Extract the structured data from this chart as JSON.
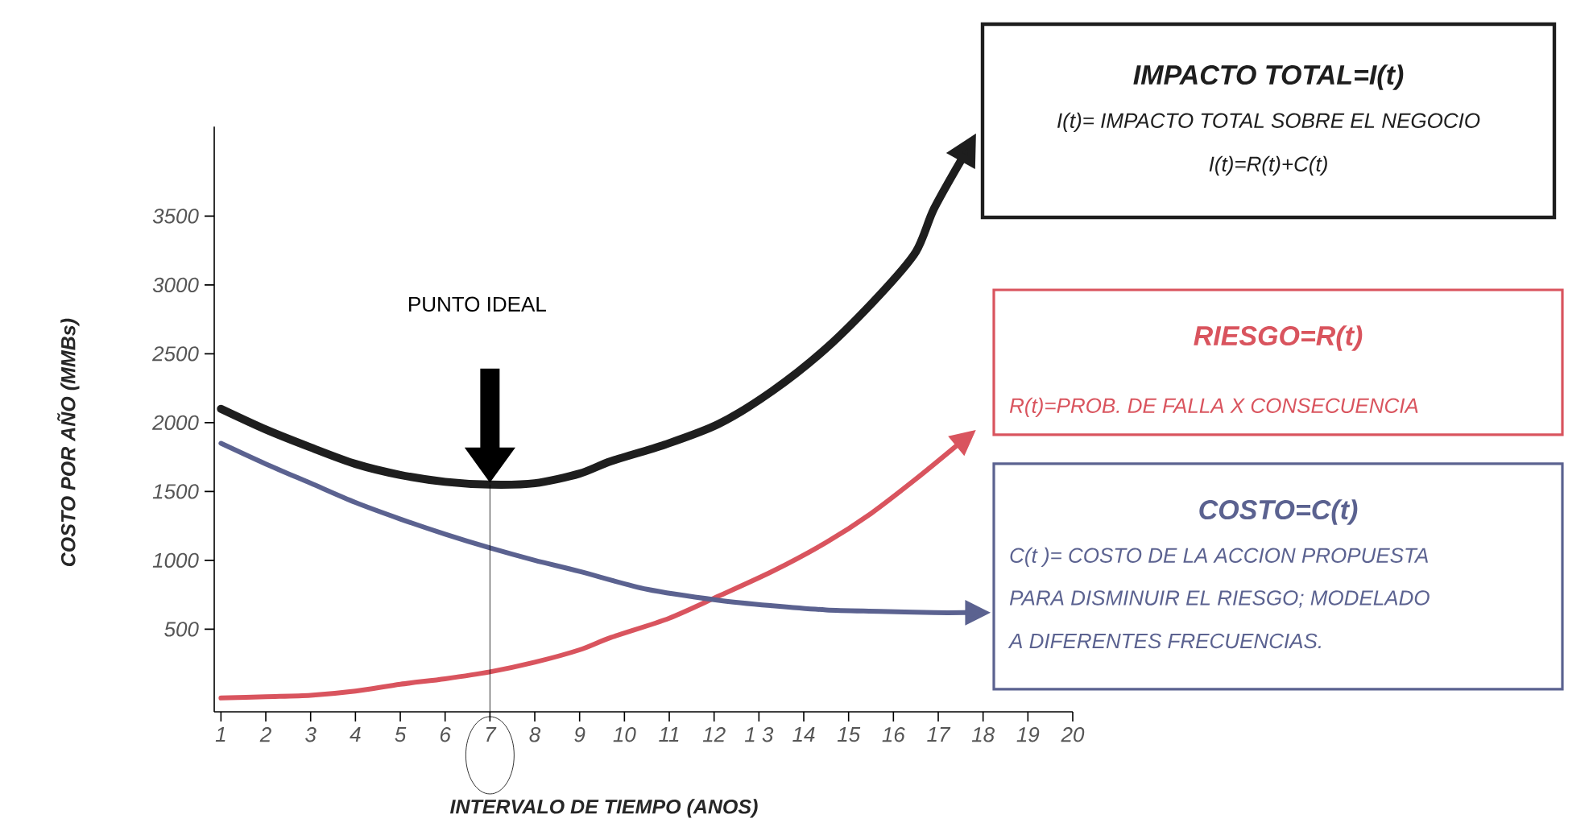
{
  "chart_data": {
    "type": "line",
    "xlabel": "INTERVALO DE TIEMPO  (ANOS)",
    "ylabel": "COSTO POR AÑO (MMBs)",
    "xlim": [
      0.85,
      20
    ],
    "ylim": [
      -100,
      4150
    ],
    "xticks": [
      1,
      2,
      3,
      4,
      5,
      6,
      7,
      8,
      9,
      10,
      11,
      12,
      {
        "value": 13,
        "label": "1 3"
      },
      14,
      15,
      16,
      17,
      18,
      19,
      20
    ],
    "yticks": [
      500,
      1000,
      1500,
      2000,
      2500,
      3000,
      3500
    ],
    "marker": "none",
    "line_style": "solid",
    "series": [
      {
        "name": "IMPACTO TOTAL=I(t)",
        "color": "#1e1e1e",
        "x": [
          1,
          2,
          3,
          4,
          5,
          6,
          7,
          8,
          9,
          9.7,
          10.9,
          12.1,
          13.3,
          14.5,
          15.7,
          16.5,
          16.9,
          17.5
        ],
        "values": [
          2100,
          1950,
          1820,
          1700,
          1620,
          1570,
          1550,
          1560,
          1630,
          1720,
          1840,
          1990,
          2230,
          2540,
          2930,
          3240,
          3550,
          3900
        ]
      },
      {
        "name": "RIESGO=R(t)",
        "color": "#d9545e",
        "x": [
          1,
          2,
          3,
          4,
          5,
          6,
          7,
          8,
          9,
          9.7,
          11,
          12.1,
          13.3,
          14.5,
          15.5,
          16.5,
          17.4
        ],
        "values": [
          0,
          10,
          20,
          50,
          100,
          140,
          190,
          260,
          350,
          440,
          580,
          740,
          920,
          1130,
          1340,
          1590,
          1830
        ]
      },
      {
        "name": "COSTO=C(t)",
        "color": "#5b6290",
        "x": [
          1,
          2,
          3,
          4,
          5,
          6,
          7,
          8,
          9,
          10.5,
          12.1,
          13.3,
          14.5,
          15.7,
          16.9,
          17.6
        ],
        "values": [
          1850,
          1700,
          1560,
          1420,
          1300,
          1190,
          1090,
          1000,
          920,
          790,
          710,
          670,
          640,
          630,
          620,
          620
        ]
      }
    ],
    "annotations": [
      "PUNTO IDEAL",
      "I(t)= IMPACTO TOTAL SOBRE EL NEGOCIO",
      "I(t)=R(t)+C(t)",
      "R(t)=PROB. DE FALLA X CONSECUENCIA",
      "C(t )= COSTO DE LA  ACCION PROPUESTA",
      "PARA DISMINUIR EL  RIESGO; MODELADO",
      "A  DIFERENTES  FRECUENCIAS."
    ]
  }
}
